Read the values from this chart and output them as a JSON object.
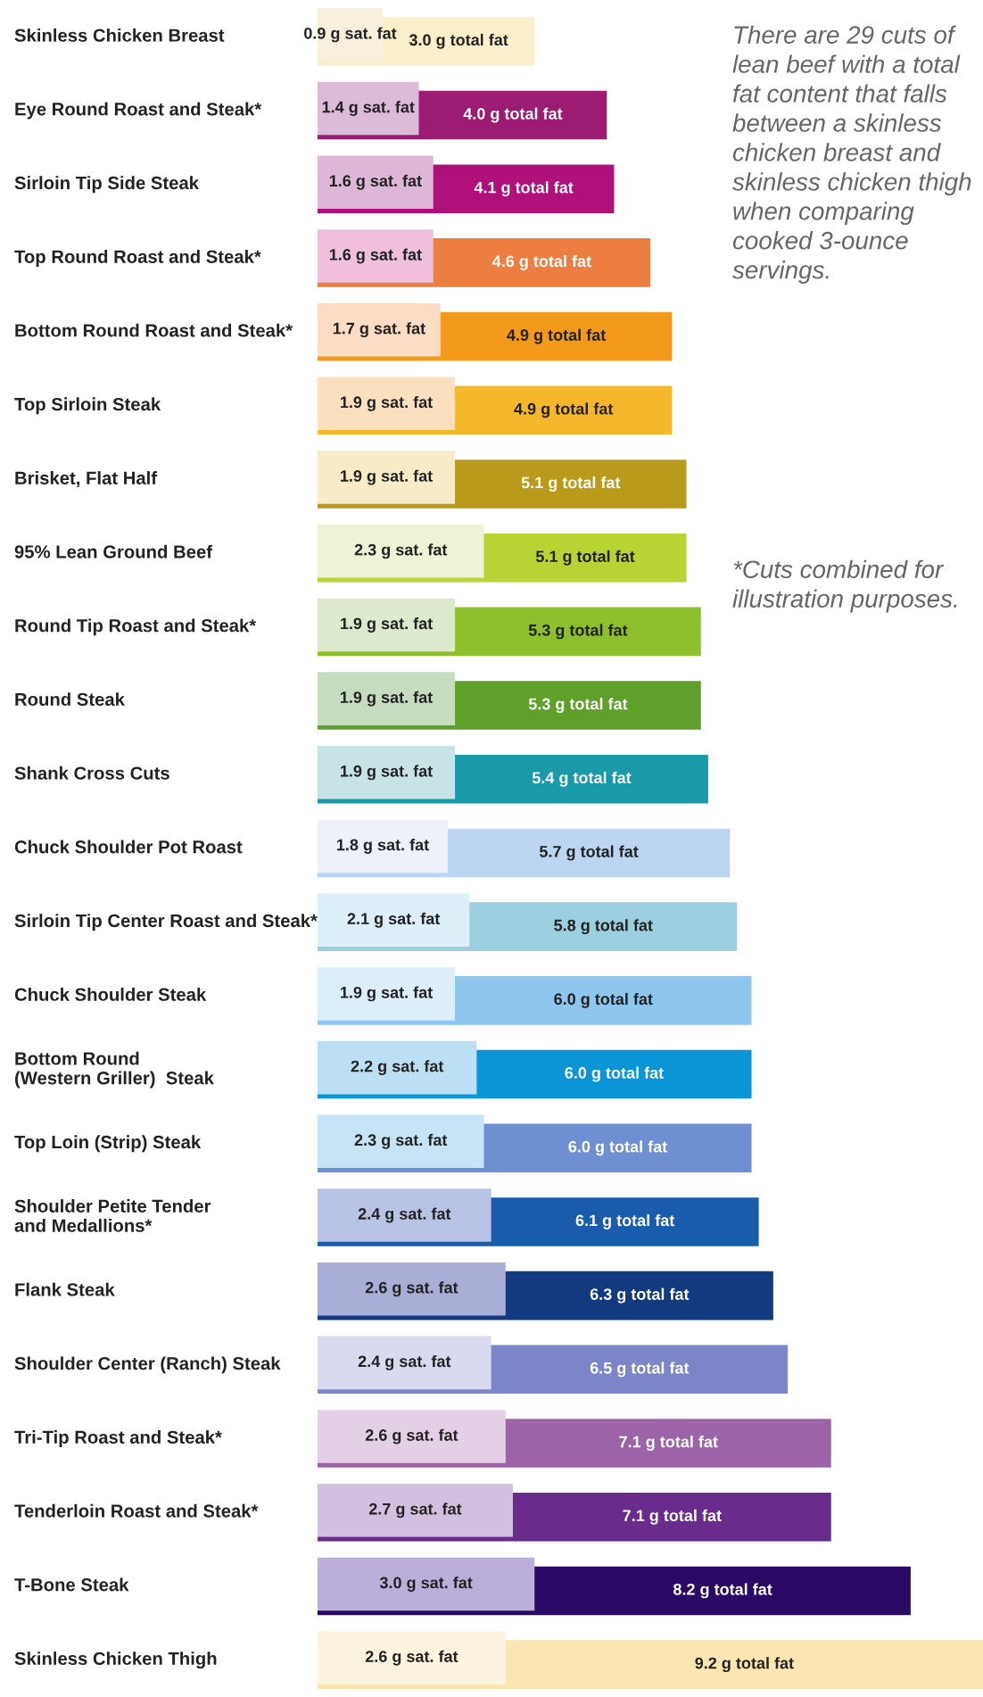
{
  "chart_data": {
    "type": "bar",
    "orientation": "horizontal",
    "categories": [
      "Skinless Chicken Breast",
      "Eye Round Roast and Steak*",
      "Sirloin Tip Side Steak",
      "Top Round Roast and Steak*",
      "Bottom Round Roast and Steak*",
      "Top Sirloin Steak",
      "Brisket, Flat Half",
      "95% Lean Ground Beef",
      "Round Tip Roast and Steak*",
      "Round Steak",
      "Shank Cross Cuts",
      "Chuck Shoulder Pot Roast",
      "Sirloin Tip Center Roast and Steak*",
      "Chuck Shoulder Steak",
      "Bottom Round\n(Western Griller)  Steak",
      "Top Loin (Strip) Steak",
      "Shoulder Petite Tender\nand Medallions*",
      "Flank Steak",
      "Shoulder Center (Ranch) Steak",
      "Tri-Tip Roast and Steak*",
      "Tenderloin Roast and Steak*",
      "T-Bone Steak",
      "Skinless Chicken Thigh"
    ],
    "series": [
      {
        "values": [
          3.0,
          4.0,
          4.1,
          4.6,
          4.9,
          4.9,
          5.1,
          5.1,
          5.3,
          5.3,
          5.4,
          5.7,
          5.8,
          6.0,
          6.0,
          6.0,
          6.1,
          6.3,
          6.5,
          7.1,
          7.1,
          8.2,
          9.2
        ],
        "value_labels": [
          "3.0 g total fat",
          "4.0 g total fat",
          "4.1 g total fat",
          "4.6 g total fat",
          "4.9 g total fat",
          "4.9 g total fat",
          "5.1 g total fat",
          "5.1 g total fat",
          "5.3 g total fat",
          "5.3 g total fat",
          "5.4 g total fat",
          "5.7 g total fat",
          "5.8 g total fat",
          "6.0 g total fat",
          "6.0 g total fat",
          "6.0 g total fat",
          "6.1 g total fat",
          "6.3 g total fat",
          "6.5 g total fat",
          "7.1 g total fat",
          "7.1 g total fat",
          "8.2 g total fat",
          "9.2 g total fat"
        ],
        "colors": [
          "#fbeecb",
          "#9c1c74",
          "#b0107a",
          "#ec7e42",
          "#f39a1d",
          "#f5b72c",
          "#b99a1a",
          "#b8d334",
          "#8dc02c",
          "#5fa02a",
          "#1a9aa8",
          "#bcd6f2",
          "#9ccfe0",
          "#8ec6ee",
          "#0a95d6",
          "#6f8fd3",
          "#1a5cac",
          "#13397e",
          "#7b85c8",
          "#9c64a6",
          "#6a2c8c",
          "#2a0a64",
          "#fbe6b2"
        ]
      },
      {
        "values": [
          0.9,
          1.4,
          1.6,
          1.6,
          1.7,
          1.9,
          1.9,
          2.3,
          1.9,
          1.9,
          1.9,
          1.8,
          2.1,
          1.9,
          2.2,
          2.3,
          2.4,
          2.6,
          2.4,
          2.6,
          2.7,
          3.0,
          2.6
        ],
        "value_labels": [
          "0.9 g sat. fat",
          "1.4 g sat. fat",
          "1.6 g sat. fat",
          "1.6 g sat. fat",
          "1.7 g sat. fat",
          "1.9 g sat. fat",
          "1.9 g sat. fat",
          "2.3 g sat. fat",
          "1.9 g sat. fat",
          "1.9 g sat. fat",
          "1.9 g sat. fat",
          "1.8 g sat. fat",
          "2.1 g sat. fat",
          "1.9 g sat. fat",
          "2.2 g sat. fat",
          "2.3 g sat. fat",
          "2.4 g sat. fat",
          "2.6 g sat. fat",
          "2.4 g sat. fat",
          "2.6 g sat. fat",
          "2.7 g sat. fat",
          "3.0 g sat. fat",
          "2.6 g sat. fat"
        ],
        "colors": [
          "#f8f0dc",
          "#dcbbd9",
          "#ddb6d8",
          "#efbfdc",
          "#fbdcc4",
          "#fbe0c0",
          "#f8ebc8",
          "#ecf3d6",
          "#dbe9cc",
          "#c6dcbe",
          "#c8e3e6",
          "#eef0fa",
          "#dceff8",
          "#dceefa",
          "#bcdff4",
          "#c6e4f6",
          "#b9c3e6",
          "#a9aed6",
          "#d9d9ef",
          "#e4d0e6",
          "#d3c0e0",
          "#bcaedb",
          "#fbf3de"
        ]
      }
    ],
    "annotations": [
      "There are 29 cuts of lean beef with a total fat content that falls between a skinless chicken breast and skinless chicken thigh when comparing cooked 3-ounce servings.",
      "*Cuts combined for illustration purposes."
    ]
  }
}
